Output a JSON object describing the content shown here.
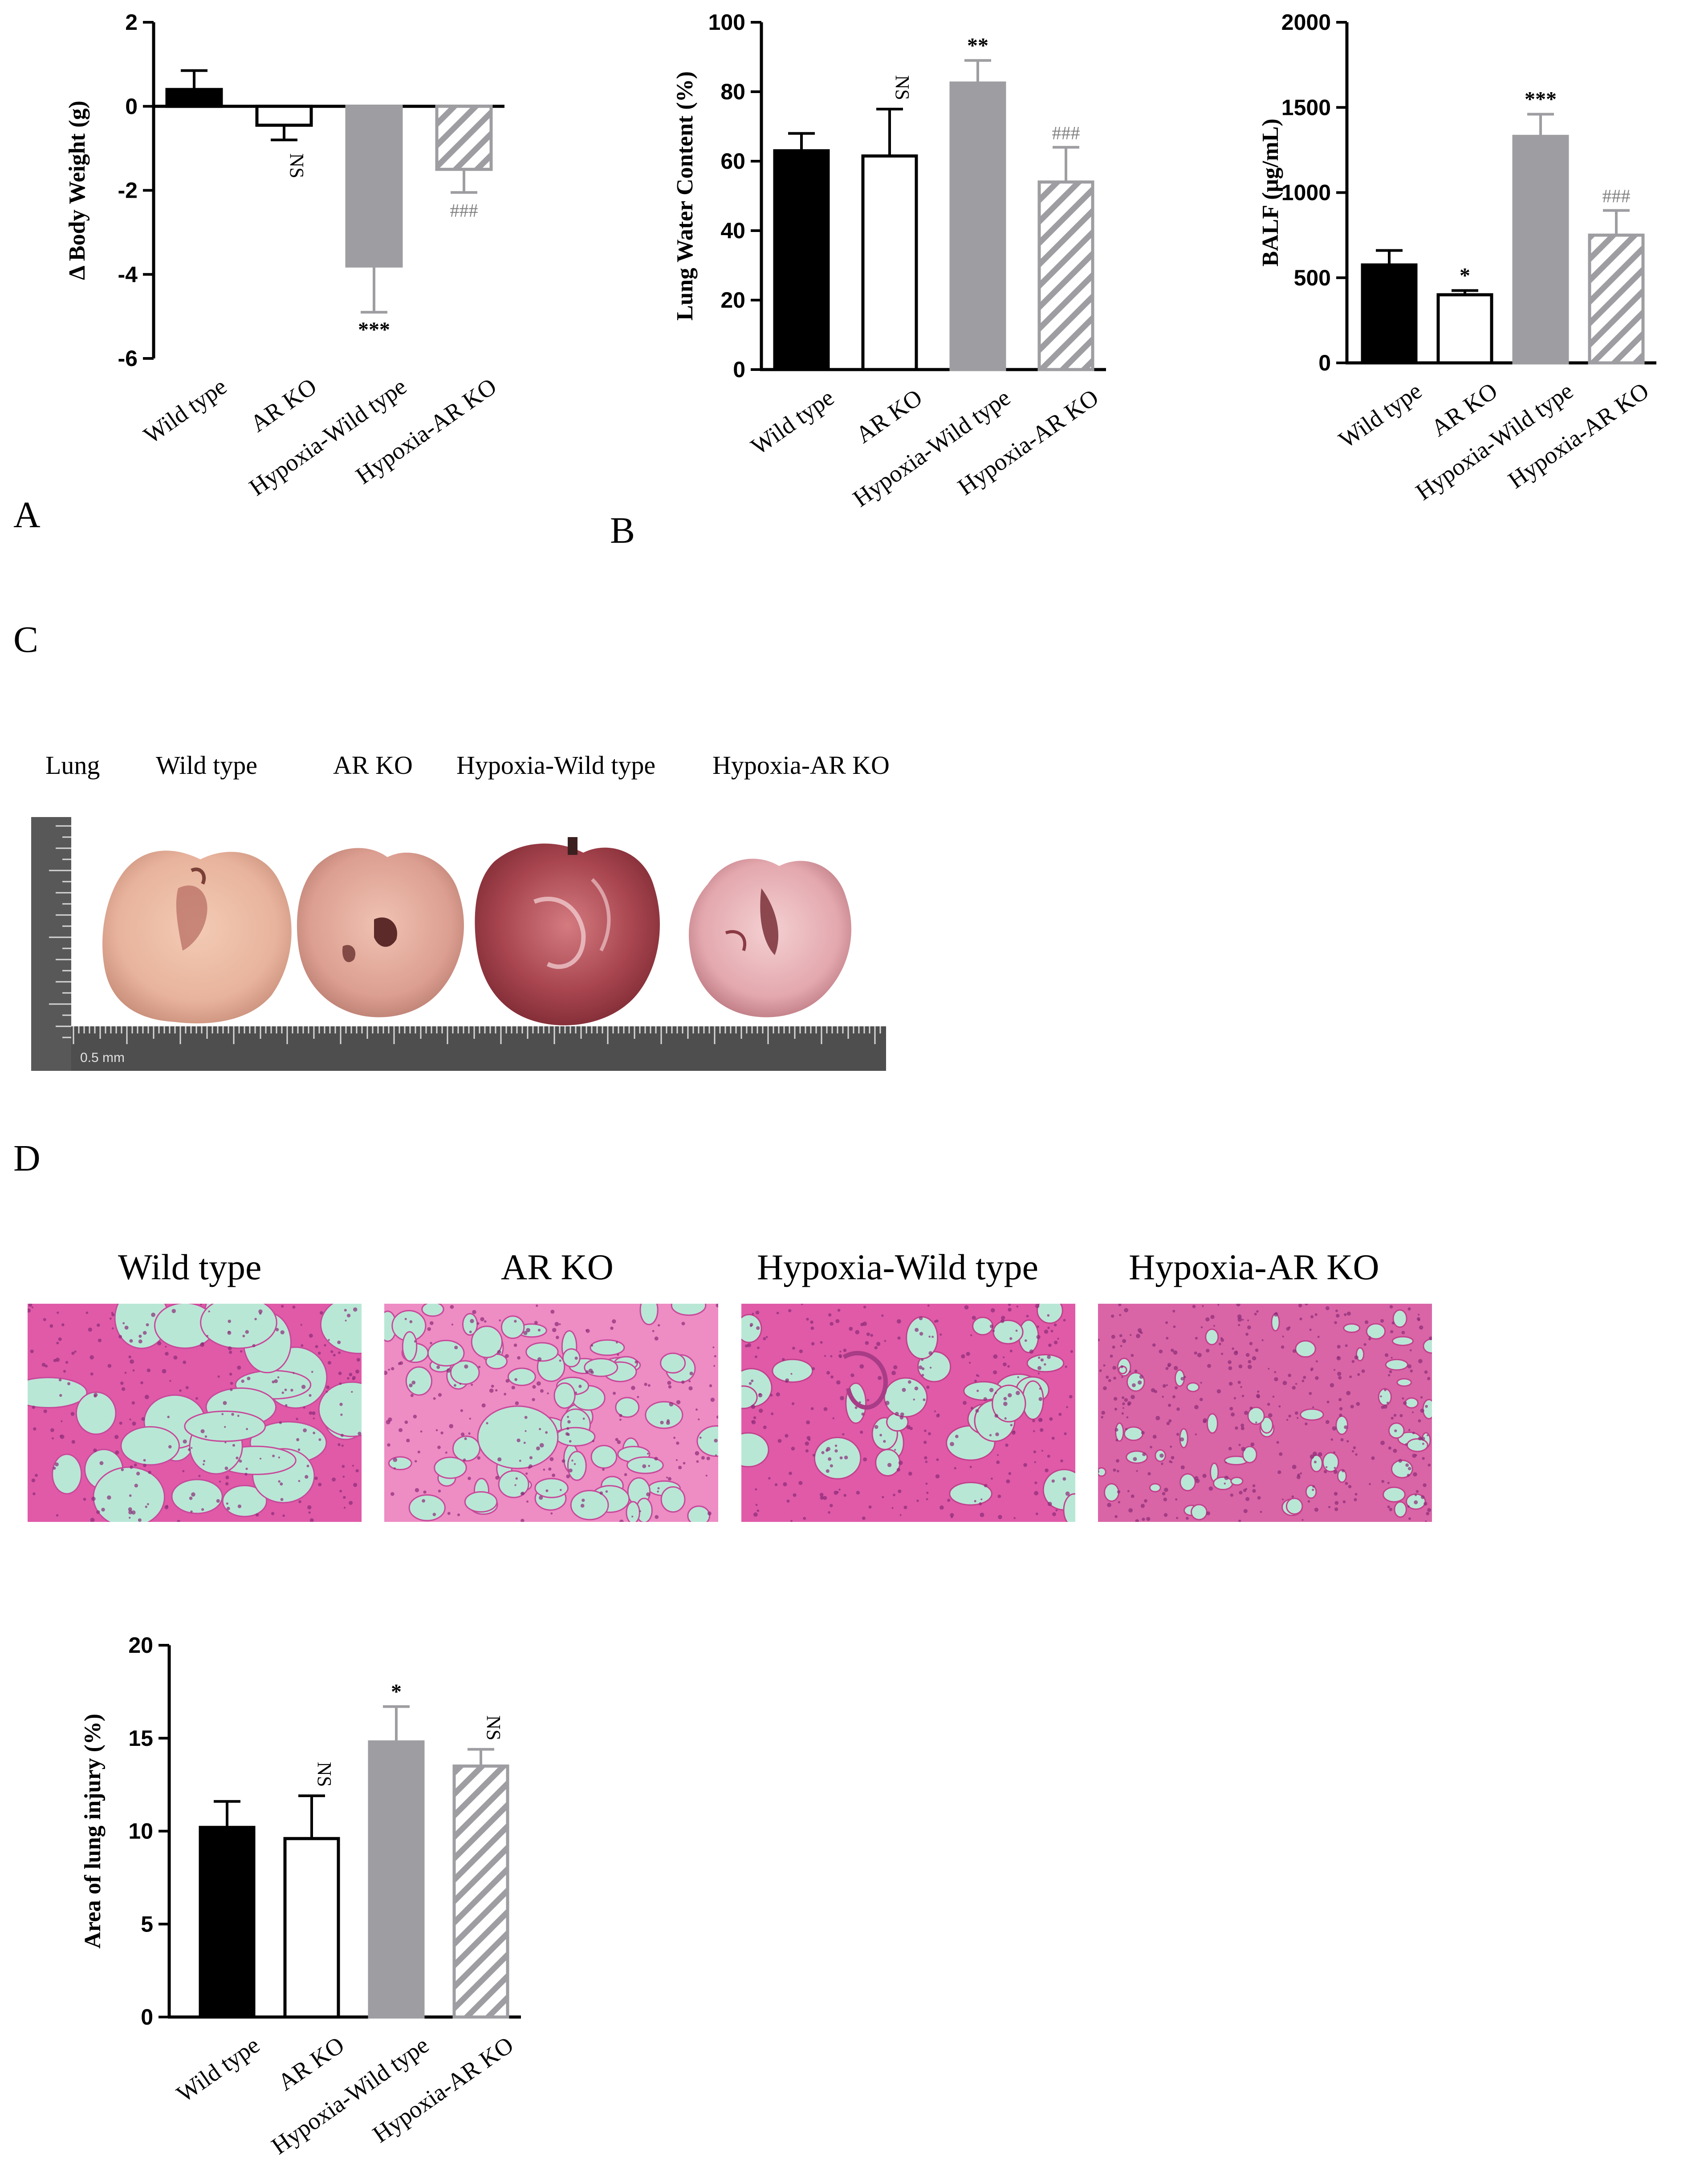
{
  "panel_letters": {
    "a": "A",
    "b": "B",
    "c": "C",
    "d": "D"
  },
  "colors": {
    "wild_type": "#000000",
    "ar_ko_fill": "#ffffff",
    "hypoxia_wild_type": "#9e9ea2",
    "hypoxia_ar_ko_hatch": "#9e9ea2",
    "he_stain_pink": "#e05aa8",
    "alveolar_space": "#b9e7d6"
  },
  "chart_data": [
    {
      "id": "body-weight",
      "type": "bar",
      "title": "",
      "ylabel": "Δ Body Weight (g)",
      "categories": [
        "Wild type",
        "AR KO",
        "Hypoxia-Wild type",
        "Hypoxia-AR KO"
      ],
      "values": [
        0.4,
        -0.45,
        -3.8,
        -1.5
      ],
      "errors": [
        0.45,
        0.35,
        1.1,
        0.55
      ],
      "annotations": [
        "",
        "NS",
        "***",
        "###"
      ],
      "ylim": [
        -6,
        2
      ],
      "yticks": [
        "2",
        "0",
        "-2",
        "-4",
        "-6"
      ],
      "grid": false
    },
    {
      "id": "lung-water",
      "type": "bar",
      "title": "",
      "ylabel": "Lung Water Content (%)",
      "categories": [
        "Wild type",
        "AR KO",
        "Hypoxia-Wild type",
        "Hypoxia-AR KO"
      ],
      "values": [
        63,
        61.5,
        82.5,
        54
      ],
      "errors": [
        5,
        13.5,
        6.5,
        10
      ],
      "annotations": [
        "",
        "NS",
        "**",
        "###"
      ],
      "ylim": [
        0,
        100
      ],
      "yticks": [
        "100",
        "80",
        "60",
        "40",
        "20",
        "0"
      ],
      "grid": false
    },
    {
      "id": "balf",
      "type": "bar",
      "title": "",
      "ylabel": "BALF (μg/mL)",
      "categories": [
        "Wild type",
        "AR KO",
        "Hypoxia-Wild type",
        "Hypoxia-AR KO"
      ],
      "values": [
        575,
        400,
        1330,
        750
      ],
      "errors": [
        85,
        25,
        130,
        145
      ],
      "annotations": [
        "",
        "*",
        "***",
        "###"
      ],
      "ylim": [
        0,
        2000
      ],
      "yticks": [
        "2000",
        "1500",
        "1000",
        "500",
        "0"
      ],
      "grid": false
    },
    {
      "id": "lung-injury",
      "type": "bar",
      "title": "",
      "ylabel": "Area of lung injury (%)",
      "categories": [
        "Wild type",
        "AR KO",
        "Hypoxia-Wild type",
        "Hypoxia-AR KO"
      ],
      "values": [
        10.2,
        9.6,
        14.8,
        13.5
      ],
      "errors": [
        1.4,
        2.3,
        1.9,
        0.9
      ],
      "annotations": [
        "",
        "NS",
        "*",
        "NS"
      ],
      "ylim": [
        0,
        20
      ],
      "yticks": [
        "20",
        "15",
        "10",
        "5",
        "0"
      ],
      "grid": false
    }
  ],
  "photo_panel": {
    "labels": [
      "Lung",
      "Wild type",
      "AR KO",
      "Hypoxia-Wild type",
      "Hypoxia-AR KO"
    ],
    "ruler_text": "0.5 mm"
  },
  "histology_panel": {
    "labels": [
      "Wild type",
      "AR KO",
      "Hypoxia-Wild type",
      "Hypoxia-AR KO"
    ]
  }
}
